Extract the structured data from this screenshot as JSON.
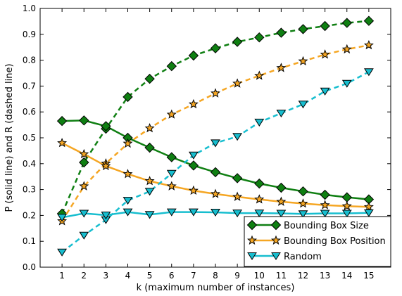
{
  "chart_data": {
    "type": "line",
    "xlabel": "k (maximum number of instances)",
    "ylabel": "P (solid line) and R (dashed line)",
    "x": [
      1,
      2,
      3,
      4,
      5,
      6,
      7,
      8,
      9,
      10,
      11,
      12,
      13,
      14,
      15
    ],
    "xlim": [
      0,
      16
    ],
    "ylim": [
      0.0,
      1.0
    ],
    "xticks": [
      "1",
      "2",
      "3",
      "4",
      "5",
      "6",
      "7",
      "8",
      "9",
      "10",
      "11",
      "12",
      "13",
      "14",
      "15"
    ],
    "yticks": [
      "0.0",
      "0.1",
      "0.2",
      "0.3",
      "0.4",
      "0.5",
      "0.6",
      "0.7",
      "0.8",
      "0.9",
      "1.0"
    ],
    "grid": false,
    "legend_position": "bottom-right",
    "series": [
      {
        "name": "Bounding Box Size",
        "color": "#0f7f12",
        "marker": "diamond",
        "precision": [
          0.565,
          0.567,
          0.545,
          0.5,
          0.462,
          0.425,
          0.393,
          0.367,
          0.344,
          0.323,
          0.307,
          0.293,
          0.28,
          0.27,
          0.262
        ],
        "recall": [
          0.207,
          0.405,
          0.535,
          0.658,
          0.728,
          0.777,
          0.818,
          0.846,
          0.871,
          0.888,
          0.906,
          0.92,
          0.932,
          0.944,
          0.952
        ]
      },
      {
        "name": "Bounding Box Position",
        "color": "#f5a623",
        "marker": "star",
        "precision": [
          0.48,
          0.437,
          0.391,
          0.36,
          0.333,
          0.313,
          0.296,
          0.283,
          0.272,
          0.262,
          0.253,
          0.246,
          0.24,
          0.236,
          0.233
        ],
        "recall": [
          0.178,
          0.313,
          0.401,
          0.478,
          0.537,
          0.59,
          0.63,
          0.672,
          0.71,
          0.74,
          0.77,
          0.796,
          0.822,
          0.842,
          0.858
        ]
      },
      {
        "name": "Random",
        "color": "#17becf",
        "marker": "triangle-down",
        "precision": [
          0.192,
          0.208,
          0.201,
          0.213,
          0.203,
          0.213,
          0.213,
          0.212,
          0.209,
          0.209,
          0.208,
          0.206,
          0.208,
          0.208,
          0.21
        ],
        "recall": [
          0.058,
          0.123,
          0.183,
          0.258,
          0.293,
          0.362,
          0.433,
          0.48,
          0.505,
          0.56,
          0.595,
          0.63,
          0.68,
          0.71,
          0.755
        ]
      }
    ]
  }
}
